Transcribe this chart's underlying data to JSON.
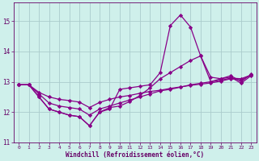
{
  "xlabel": "Windchill (Refroidissement éolien,°C)",
  "xlim": [
    -0.5,
    23.5
  ],
  "ylim": [
    11,
    15.6
  ],
  "yticks": [
    11,
    12,
    13,
    14,
    15
  ],
  "xticks": [
    0,
    1,
    2,
    3,
    4,
    5,
    6,
    7,
    8,
    9,
    10,
    11,
    12,
    13,
    14,
    15,
    16,
    17,
    18,
    19,
    20,
    21,
    22,
    23
  ],
  "bg_color": "#cff0eb",
  "line_color": "#880088",
  "grid_color": "#aacccc",
  "font_color": "#660066",
  "series": [
    [
      12.9,
      12.9,
      12.5,
      12.1,
      12.0,
      11.9,
      11.85,
      11.55,
      12.0,
      12.1,
      12.75,
      12.8,
      12.85,
      12.9,
      13.3,
      14.85,
      15.2,
      14.8,
      13.85,
      13.15,
      13.1,
      13.2,
      13.0,
      13.25
    ],
    [
      12.9,
      12.9,
      12.5,
      12.1,
      12.0,
      11.9,
      11.85,
      11.55,
      12.0,
      12.15,
      12.2,
      12.35,
      12.55,
      12.8,
      13.1,
      13.3,
      13.5,
      13.7,
      13.85,
      13.0,
      13.1,
      13.15,
      12.95,
      13.2
    ],
    [
      12.9,
      12.9,
      12.6,
      12.3,
      12.2,
      12.15,
      12.1,
      11.9,
      12.1,
      12.2,
      12.3,
      12.4,
      12.5,
      12.6,
      12.7,
      12.75,
      12.82,
      12.9,
      12.95,
      13.0,
      13.05,
      13.12,
      13.1,
      13.22
    ],
    [
      12.9,
      12.9,
      12.65,
      12.5,
      12.42,
      12.38,
      12.33,
      12.15,
      12.32,
      12.42,
      12.5,
      12.55,
      12.62,
      12.68,
      12.72,
      12.78,
      12.83,
      12.88,
      12.92,
      12.96,
      13.02,
      13.1,
      13.06,
      13.22
    ]
  ]
}
